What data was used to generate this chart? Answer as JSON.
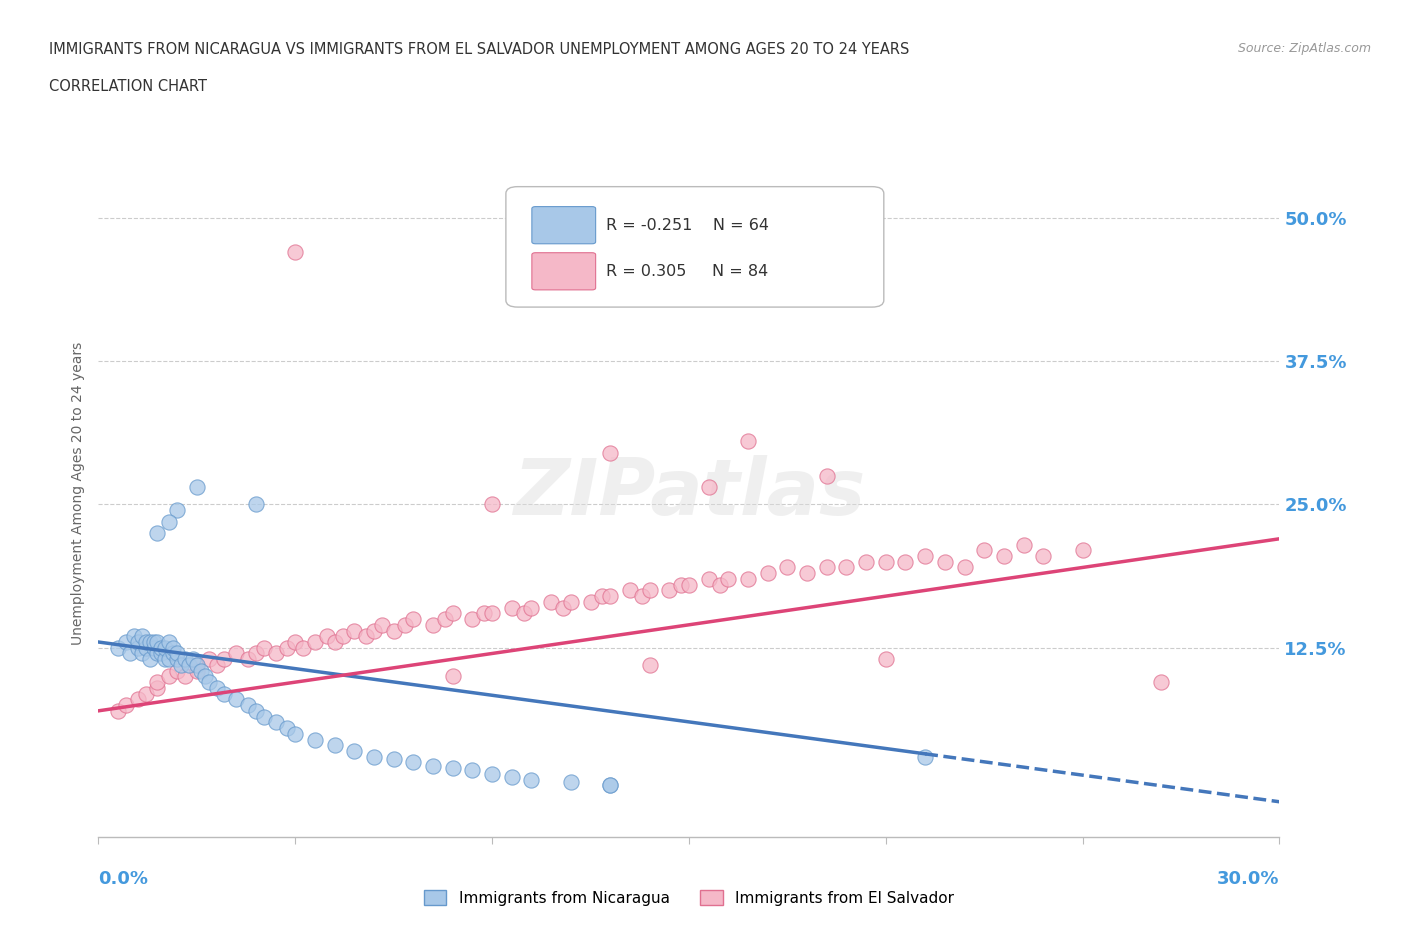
{
  "title_line1": "IMMIGRANTS FROM NICARAGUA VS IMMIGRANTS FROM EL SALVADOR UNEMPLOYMENT AMONG AGES 20 TO 24 YEARS",
  "title_line2": "CORRELATION CHART",
  "source_text": "Source: ZipAtlas.com",
  "ylabel": "Unemployment Among Ages 20 to 24 years",
  "yticks": [
    0.0,
    0.125,
    0.25,
    0.375,
    0.5
  ],
  "ytick_labels": [
    "",
    "12.5%",
    "25.0%",
    "37.5%",
    "50.0%"
  ],
  "xlim": [
    0.0,
    0.3
  ],
  "ylim": [
    -0.04,
    0.56
  ],
  "nicaragua_color": "#a8c8e8",
  "nicaragua_edge": "#6699cc",
  "salvador_color": "#f5b8c8",
  "salvador_edge": "#e07090",
  "nicaragua_label": "Immigrants from Nicaragua",
  "salvador_label": "Immigrants from El Salvador",
  "nicaragua_R": -0.251,
  "nicaragua_N": 64,
  "salvador_R": 0.305,
  "salvador_N": 84,
  "trendline_nicaragua_color": "#4477bb",
  "trendline_salvador_color": "#dd4477",
  "watermark": "ZIPatlas",
  "background_color": "#ffffff",
  "grid_color": "#cccccc",
  "title_color": "#333333",
  "axis_label_color": "#4499dd",
  "nicaragua_scatter_x": [
    0.005,
    0.007,
    0.008,
    0.009,
    0.01,
    0.01,
    0.011,
    0.011,
    0.012,
    0.012,
    0.013,
    0.013,
    0.014,
    0.014,
    0.015,
    0.015,
    0.016,
    0.016,
    0.017,
    0.017,
    0.018,
    0.018,
    0.019,
    0.019,
    0.02,
    0.02,
    0.021,
    0.022,
    0.023,
    0.024,
    0.025,
    0.026,
    0.027,
    0.028,
    0.03,
    0.032,
    0.035,
    0.038,
    0.04,
    0.042,
    0.045,
    0.048,
    0.05,
    0.055,
    0.06,
    0.065,
    0.07,
    0.075,
    0.08,
    0.085,
    0.09,
    0.095,
    0.1,
    0.105,
    0.11,
    0.12,
    0.13,
    0.04,
    0.025,
    0.02,
    0.018,
    0.015,
    0.21,
    0.13
  ],
  "nicaragua_scatter_y": [
    0.125,
    0.13,
    0.12,
    0.135,
    0.125,
    0.13,
    0.12,
    0.135,
    0.125,
    0.13,
    0.115,
    0.13,
    0.125,
    0.13,
    0.12,
    0.13,
    0.12,
    0.125,
    0.115,
    0.125,
    0.115,
    0.13,
    0.12,
    0.125,
    0.115,
    0.12,
    0.11,
    0.115,
    0.11,
    0.115,
    0.11,
    0.105,
    0.1,
    0.095,
    0.09,
    0.085,
    0.08,
    0.075,
    0.07,
    0.065,
    0.06,
    0.055,
    0.05,
    0.045,
    0.04,
    0.035,
    0.03,
    0.028,
    0.025,
    0.022,
    0.02,
    0.018,
    0.015,
    0.012,
    0.01,
    0.008,
    0.005,
    0.25,
    0.265,
    0.245,
    0.235,
    0.225,
    0.03,
    0.005
  ],
  "salvador_scatter_x": [
    0.005,
    0.007,
    0.01,
    0.012,
    0.015,
    0.015,
    0.018,
    0.02,
    0.022,
    0.025,
    0.025,
    0.028,
    0.03,
    0.032,
    0.035,
    0.038,
    0.04,
    0.042,
    0.045,
    0.048,
    0.05,
    0.052,
    0.055,
    0.058,
    0.06,
    0.062,
    0.065,
    0.068,
    0.07,
    0.072,
    0.075,
    0.078,
    0.08,
    0.085,
    0.088,
    0.09,
    0.095,
    0.098,
    0.1,
    0.105,
    0.108,
    0.11,
    0.115,
    0.118,
    0.12,
    0.125,
    0.128,
    0.13,
    0.135,
    0.138,
    0.14,
    0.145,
    0.148,
    0.15,
    0.155,
    0.158,
    0.16,
    0.165,
    0.17,
    0.175,
    0.18,
    0.185,
    0.19,
    0.195,
    0.2,
    0.205,
    0.21,
    0.215,
    0.22,
    0.225,
    0.23,
    0.235,
    0.24,
    0.25,
    0.13,
    0.165,
    0.05,
    0.1,
    0.155,
    0.185,
    0.09,
    0.14,
    0.2,
    0.27
  ],
  "salvador_scatter_y": [
    0.07,
    0.075,
    0.08,
    0.085,
    0.09,
    0.095,
    0.1,
    0.105,
    0.1,
    0.11,
    0.105,
    0.115,
    0.11,
    0.115,
    0.12,
    0.115,
    0.12,
    0.125,
    0.12,
    0.125,
    0.13,
    0.125,
    0.13,
    0.135,
    0.13,
    0.135,
    0.14,
    0.135,
    0.14,
    0.145,
    0.14,
    0.145,
    0.15,
    0.145,
    0.15,
    0.155,
    0.15,
    0.155,
    0.155,
    0.16,
    0.155,
    0.16,
    0.165,
    0.16,
    0.165,
    0.165,
    0.17,
    0.17,
    0.175,
    0.17,
    0.175,
    0.175,
    0.18,
    0.18,
    0.185,
    0.18,
    0.185,
    0.185,
    0.19,
    0.195,
    0.19,
    0.195,
    0.195,
    0.2,
    0.2,
    0.2,
    0.205,
    0.2,
    0.195,
    0.21,
    0.205,
    0.215,
    0.205,
    0.21,
    0.295,
    0.305,
    0.47,
    0.25,
    0.265,
    0.275,
    0.1,
    0.11,
    0.115,
    0.095
  ]
}
